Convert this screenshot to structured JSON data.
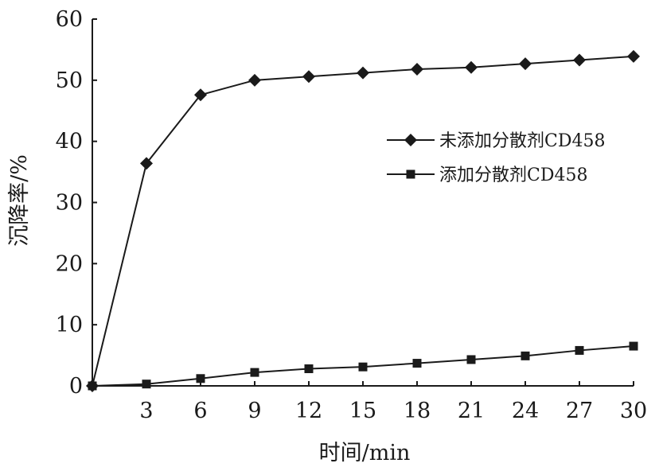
{
  "chart_data": {
    "type": "line",
    "xlabel": "时间/min",
    "ylabel": "沉降率/%",
    "x": [
      0,
      3,
      6,
      9,
      12,
      15,
      18,
      21,
      24,
      27,
      30
    ],
    "xticks": [
      3,
      6,
      9,
      12,
      15,
      18,
      21,
      24,
      27,
      30
    ],
    "yticks": [
      0,
      10,
      20,
      30,
      40,
      50,
      60
    ],
    "xlim": [
      0,
      30
    ],
    "ylim": [
      0,
      60
    ],
    "grid": false,
    "legend_position": "right",
    "series": [
      {
        "name": "未添加分散剂CD458",
        "marker": "diamond",
        "values": [
          0,
          36.4,
          47.6,
          50.0,
          50.6,
          51.2,
          51.8,
          52.1,
          52.7,
          53.3,
          53.9
        ]
      },
      {
        "name": "添加分散剂CD458",
        "marker": "square",
        "values": [
          0,
          0.3,
          1.2,
          2.2,
          2.8,
          3.1,
          3.7,
          4.3,
          4.9,
          5.8,
          6.5
        ]
      }
    ]
  }
}
